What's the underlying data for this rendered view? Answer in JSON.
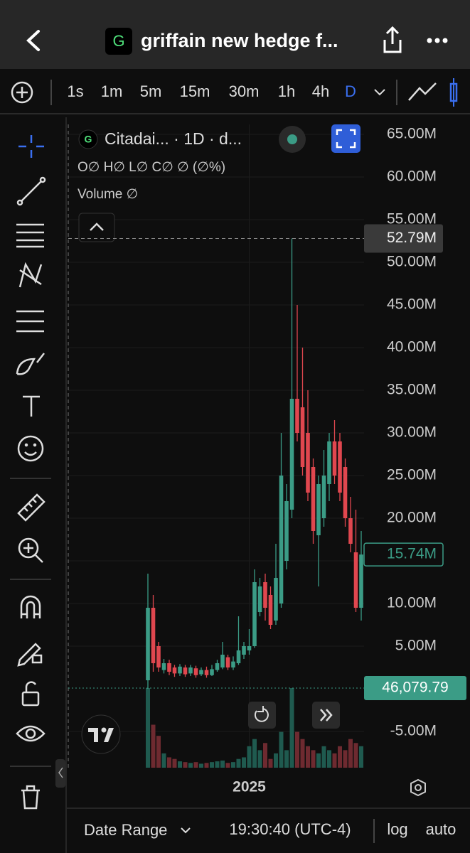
{
  "header": {
    "icon": "G",
    "title": "griffain new hedge f..."
  },
  "toolbar": {
    "intervals": [
      "1s",
      "1m",
      "5m",
      "15m",
      "30m",
      "1h",
      "4h",
      "D"
    ],
    "active": 7
  },
  "chart_data": {
    "type": "candlestick",
    "title": "Citadai... · 1D · d...",
    "icon": "G",
    "ohlc_legend": "O∅ H∅ L∅ C∅ ∅ (∅%)",
    "volume_legend": "Volume ∅",
    "categories": [
      null,
      null,
      null,
      null,
      null,
      null,
      null,
      null,
      null,
      null,
      null,
      null,
      null,
      null,
      null,
      null,
      null,
      null,
      null,
      "2025",
      null,
      null,
      null,
      null,
      null,
      null,
      null,
      null,
      null,
      null,
      null,
      null,
      null,
      null,
      null,
      null,
      null,
      null,
      null,
      null,
      null
    ],
    "open": [
      1,
      9.5,
      5,
      2.2,
      3,
      2.5,
      1.8,
      2.5,
      1.8,
      2.4,
      1.7,
      2.2,
      1.6,
      2.2,
      2.5,
      3.7,
      2.5,
      3,
      4,
      4.5,
      5,
      9,
      12.5,
      11,
      8,
      10,
      15,
      21,
      34,
      33,
      30,
      26,
      18,
      20,
      24,
      29,
      29,
      26,
      20,
      16,
      9.5
    ],
    "high": [
      13.5,
      11,
      5.5,
      3.5,
      3.4,
      2.8,
      2.9,
      2.8,
      2.8,
      2.7,
      2.5,
      2.6,
      2.8,
      3.4,
      5.5,
      4,
      3.8,
      8.5,
      5.5,
      7,
      14,
      13,
      13.5,
      12,
      17,
      30,
      24,
      52.79,
      45,
      40,
      35,
      27,
      25,
      28,
      30,
      31.5,
      30,
      27,
      22.5,
      21,
      18.5
    ],
    "low": [
      0,
      2,
      2,
      1.8,
      1.6,
      1.4,
      1.5,
      1.4,
      1.5,
      1.3,
      1.5,
      1.3,
      1.5,
      2,
      2.3,
      2.2,
      2.2,
      2.8,
      3.5,
      4,
      4.8,
      8.5,
      8,
      7,
      7.5,
      9.5,
      14,
      20,
      29,
      25,
      22,
      17,
      12,
      19,
      22,
      24,
      22,
      19,
      16,
      9,
      8
    ],
    "close": [
      9.5,
      3,
      2.5,
      3,
      2,
      1.8,
      2.6,
      1.7,
      2.5,
      1.6,
      2.2,
      1.6,
      2.3,
      3,
      4,
      2.5,
      3.2,
      4.5,
      5,
      5,
      12.5,
      12,
      9.5,
      7.5,
      13,
      25,
      22,
      34,
      30,
      26,
      23,
      18.5,
      24,
      25,
      29,
      25,
      23,
      20,
      17,
      9.5,
      15.74
    ],
    "volume": [
      100,
      54,
      40,
      18,
      13,
      11,
      8,
      7,
      6,
      7,
      5,
      6,
      7,
      8,
      9,
      6,
      7,
      11,
      13,
      27,
      36,
      22,
      31,
      11,
      18,
      45,
      22,
      100,
      45,
      36,
      27,
      22,
      18,
      27,
      22,
      18,
      27,
      22,
      36,
      31,
      27
    ],
    "volume_ylim": [
      0,
      100
    ],
    "up_color": "#3b9c86",
    "down_color": "#e0474f",
    "volume_up_color": "#1f5a4f",
    "volume_down_color": "#6e2a30",
    "ylim": [
      -10,
      67
    ],
    "yticks": [
      {
        "value": 65,
        "label": "65.00M"
      },
      {
        "value": 60,
        "label": "60.00M"
      },
      {
        "value": 55,
        "label": "55.00M"
      },
      {
        "value": 50,
        "label": "50.00M"
      },
      {
        "value": 45,
        "label": "45.00M"
      },
      {
        "value": 40,
        "label": "40.00M"
      },
      {
        "value": 35,
        "label": "35.00M"
      },
      {
        "value": 30,
        "label": "30.00M"
      },
      {
        "value": 25,
        "label": "25.00M"
      },
      {
        "value": 20,
        "label": "20.00M"
      },
      {
        "value": 15,
        "label": "15.00M"
      },
      {
        "value": 10,
        "label": "10.00M"
      },
      {
        "value": 5,
        "label": "5.00M"
      },
      {
        "value": -5,
        "label": "-5.00M"
      }
    ],
    "grid": true,
    "high_marker": {
      "value": 52.79,
      "label": "52.79M"
    },
    "last_price": {
      "value": 15.74,
      "label": "15.74M"
    },
    "volume_last_label": "46,079.79"
  },
  "footer": {
    "date_range": "Date Range",
    "time": "19:30:40 (UTC-4)",
    "log": "log",
    "auto": "auto"
  }
}
